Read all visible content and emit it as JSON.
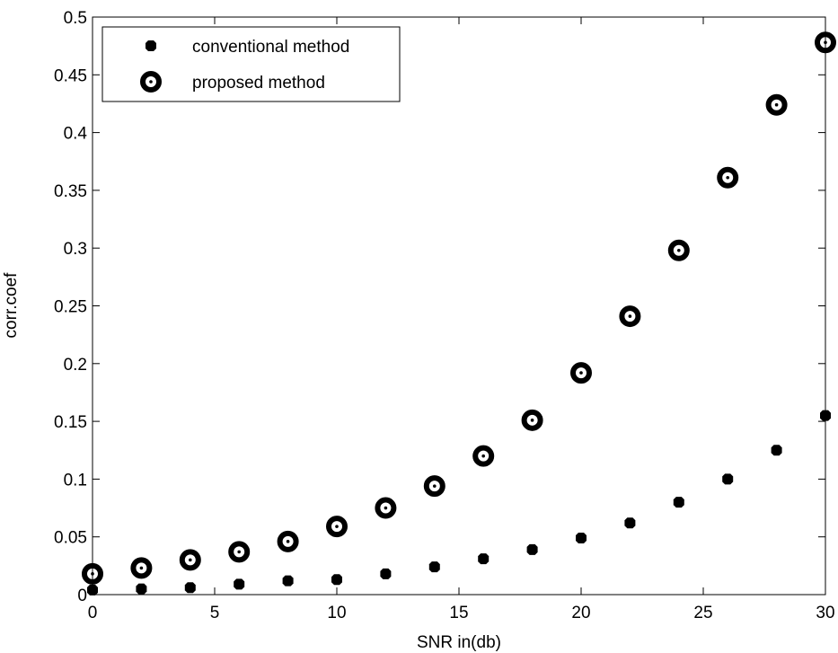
{
  "chart_data": {
    "type": "scatter",
    "title": "",
    "xlabel": "SNR in(db)",
    "ylabel": "corr.coef",
    "xlim": [
      0,
      30
    ],
    "ylim": [
      0,
      0.5
    ],
    "x_ticks": [
      0,
      5,
      10,
      15,
      20,
      25,
      30
    ],
    "x_tick_labels": [
      "0",
      "5",
      "10",
      "15",
      "20",
      "25",
      "30"
    ],
    "y_ticks": [
      0,
      0.05,
      0.1,
      0.15,
      0.2,
      0.25,
      0.3,
      0.35,
      0.4,
      0.45,
      0.5
    ],
    "y_tick_labels": [
      "0",
      "0.05",
      "0.1",
      "0.15",
      "0.2",
      "0.25",
      "0.3",
      "0.35",
      "0.4",
      "0.45",
      "0.5"
    ],
    "grid": false,
    "legend_position": "top-left",
    "series": [
      {
        "name": "conventional method",
        "marker": "filled-square",
        "color": "#000000",
        "x": [
          0,
          2,
          4,
          6,
          8,
          10,
          12,
          14,
          16,
          18,
          20,
          22,
          24,
          26,
          28,
          30
        ],
        "y": [
          0.004,
          0.005,
          0.006,
          0.009,
          0.012,
          0.013,
          0.018,
          0.024,
          0.031,
          0.039,
          0.049,
          0.062,
          0.08,
          0.1,
          0.125,
          0.155
        ]
      },
      {
        "name": "proposed method",
        "marker": "ring-with-dot",
        "color": "#000000",
        "x": [
          0,
          2,
          4,
          6,
          8,
          10,
          12,
          14,
          16,
          18,
          20,
          22,
          24,
          26,
          28,
          30
        ],
        "y": [
          0.018,
          0.023,
          0.03,
          0.037,
          0.046,
          0.059,
          0.075,
          0.094,
          0.12,
          0.151,
          0.192,
          0.241,
          0.298,
          0.361,
          0.424,
          0.478
        ]
      }
    ]
  }
}
